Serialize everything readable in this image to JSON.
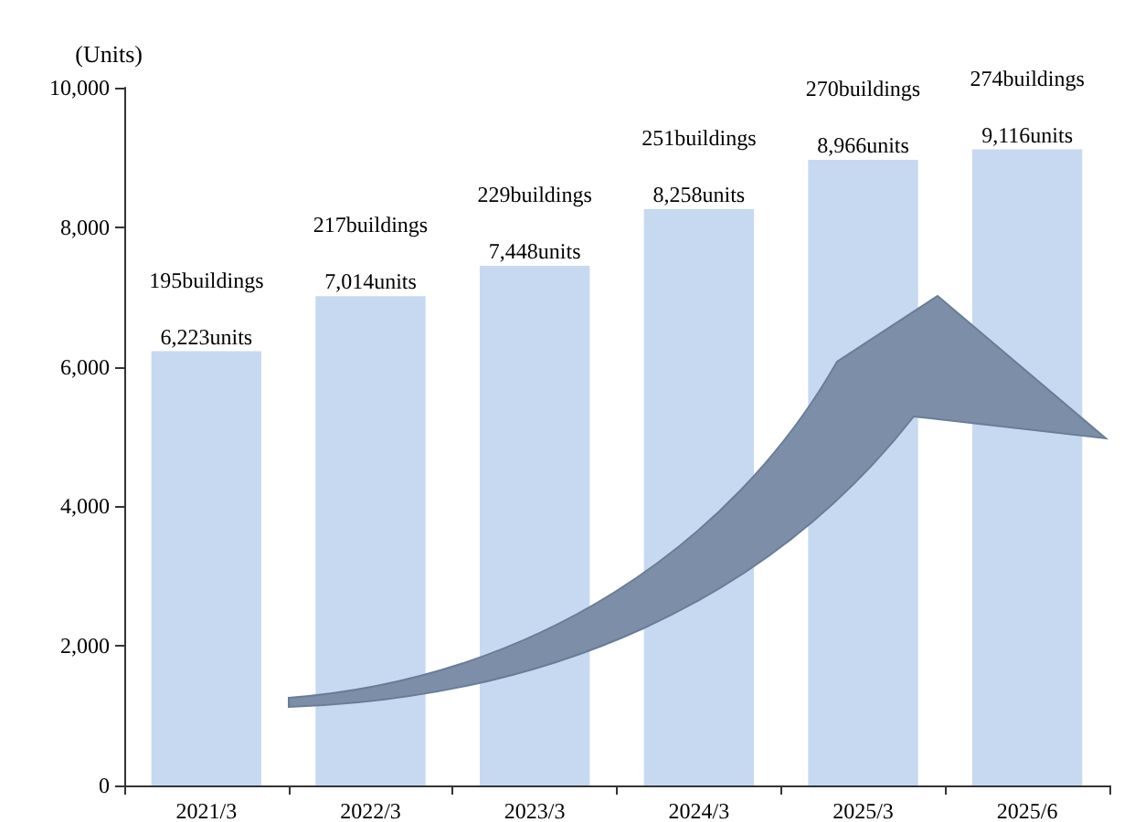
{
  "chart_data": {
    "type": "bar",
    "ylabel": "(Units)",
    "categories": [
      "2021/3",
      "2022/3",
      "2023/3",
      "2024/3",
      "2025/3",
      "2025/6"
    ],
    "values": [
      6223,
      7014,
      7448,
      8258,
      8966,
      9116
    ],
    "value_labels": [
      "6,223units",
      "7,014units",
      "7,448units",
      "8,258units",
      "8,966units",
      "9,116units"
    ],
    "color": "#c6d9f1",
    "ylim": [
      0,
      10000
    ],
    "yticks": [
      {
        "value": 0,
        "label": "0"
      },
      {
        "value": 2000,
        "label": "2,000"
      },
      {
        "value": 4000,
        "label": "4,000"
      },
      {
        "value": 6000,
        "label": "6,000"
      },
      {
        "value": 8000,
        "label": "8,000"
      },
      {
        "value": 10000,
        "label": "10,000"
      }
    ],
    "annotations": [
      {
        "text": "195buildings",
        "x": "2021/3",
        "y": 6223
      },
      {
        "text": "217buildings",
        "x": "2022/3",
        "y": 7014
      },
      {
        "text": "229buildings",
        "x": "2023/3",
        "y": 7448
      },
      {
        "text": "251buildings",
        "x": "2024/3",
        "y": 8258
      },
      {
        "text": "270buildings",
        "x": "2025/3",
        "y": 8966
      },
      {
        "text": "274buildings",
        "x": "2025/6",
        "y": 9116
      }
    ]
  }
}
